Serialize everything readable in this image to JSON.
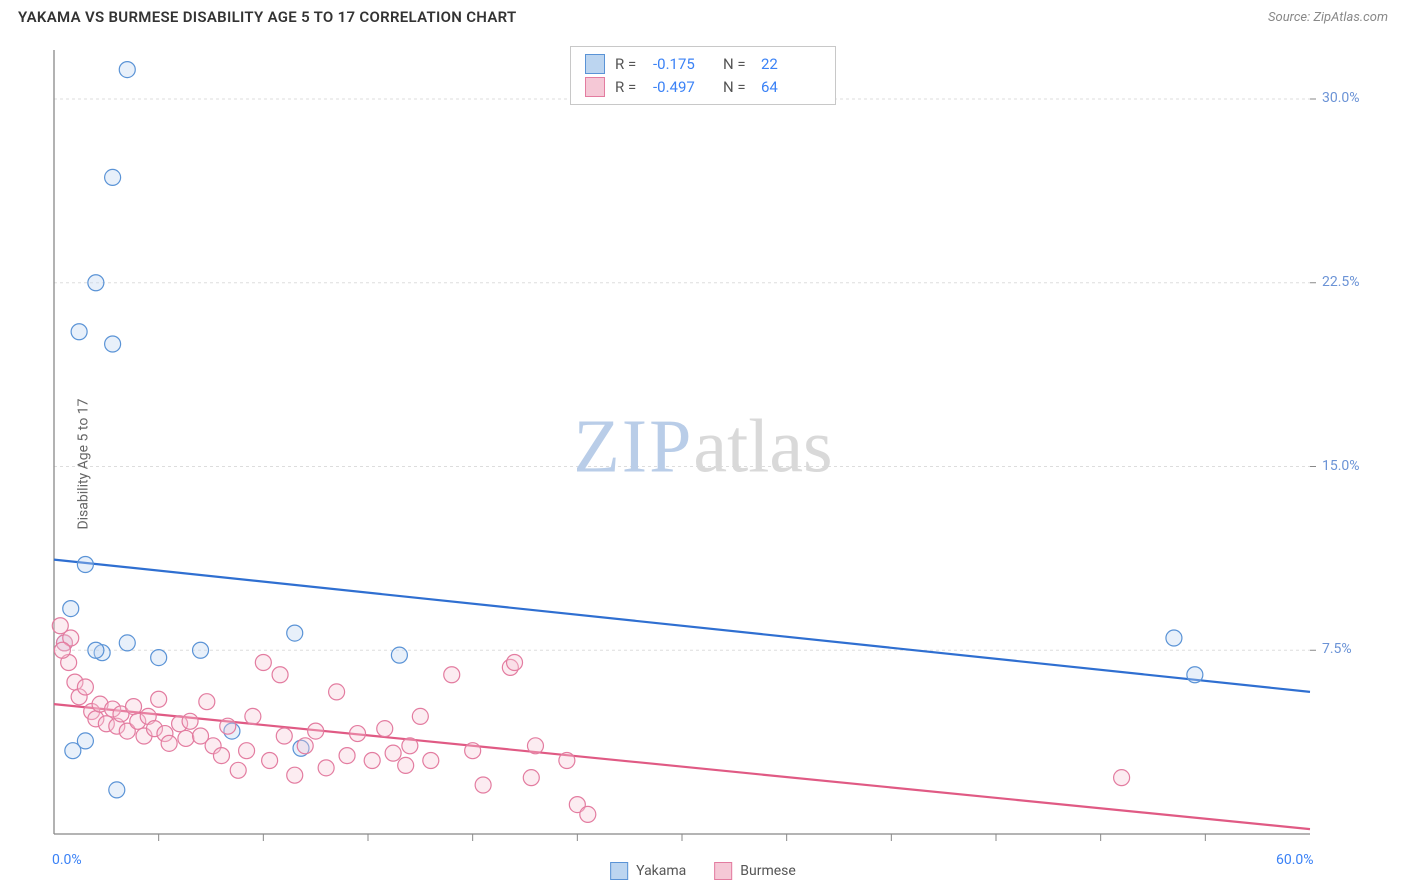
{
  "header": {
    "title": "YAKAMA VS BURMESE DISABILITY AGE 5 TO 17 CORRELATION CHART",
    "title_color": "#333333",
    "source_prefix": "Source: ",
    "source_name": "ZipAtlas.com",
    "source_color": "#888888"
  },
  "chart": {
    "type": "scatter",
    "ylabel": "Disability Age 5 to 17",
    "ylabel_color": "#666666",
    "background_color": "#ffffff",
    "plot_border_color": "#888888",
    "grid_color": "#dddddd",
    "grid_dash": "3,3",
    "xlim": [
      0,
      60
    ],
    "ylim": [
      0,
      32
    ],
    "x_start_label": "0.0%",
    "x_end_label": "60.0%",
    "x_label_color": "#3b82f6",
    "x_ticks": [
      5,
      10,
      15,
      20,
      25,
      30,
      35,
      40,
      45,
      50,
      55
    ],
    "y_ticks": [
      {
        "v": 7.5,
        "label": "7.5%"
      },
      {
        "v": 15.0,
        "label": "15.0%"
      },
      {
        "v": 22.5,
        "label": "22.5%"
      },
      {
        "v": 30.0,
        "label": "30.0%"
      }
    ],
    "y_tick_color": "#6b93d6",
    "marker_radius": 8,
    "marker_stroke_width": 1.2,
    "marker_fill_opacity": 0.35,
    "line_width": 2.2
  },
  "watermark": {
    "zip": "ZIP",
    "atlas": "atlas",
    "zip_color": "#b9cde8",
    "atlas_color": "#d9d9d9"
  },
  "legend_top": {
    "rows": [
      {
        "swatch_fill": "#bcd5f0",
        "swatch_stroke": "#5a93d6",
        "r_label": "R =",
        "r_value": "-0.175",
        "n_label": "N =",
        "n_value": "22",
        "value_color": "#3b82f6"
      },
      {
        "swatch_fill": "#f5c8d6",
        "swatch_stroke": "#e37ca0",
        "r_label": "R =",
        "r_value": "-0.497",
        "n_label": "N =",
        "n_value": "64",
        "value_color": "#3b82f6"
      }
    ],
    "label_color": "#555555"
  },
  "legend_bottom": {
    "items": [
      {
        "swatch_fill": "#bcd5f0",
        "swatch_stroke": "#5a93d6",
        "label": "Yakama"
      },
      {
        "swatch_fill": "#f5c8d6",
        "swatch_stroke": "#e37ca0",
        "label": "Burmese"
      }
    ]
  },
  "series": [
    {
      "name": "Yakama",
      "color_stroke": "#5a93d6",
      "color_fill": "#bcd5f0",
      "trend": {
        "x1": 0,
        "y1": 11.2,
        "x2": 60,
        "y2": 5.8,
        "color": "#2f6fd1"
      },
      "points": [
        [
          3.5,
          31.2
        ],
        [
          2.8,
          26.8
        ],
        [
          2.0,
          22.5
        ],
        [
          1.2,
          20.5
        ],
        [
          2.8,
          20.0
        ],
        [
          1.5,
          11.0
        ],
        [
          0.8,
          9.2
        ],
        [
          0.5,
          7.8
        ],
        [
          2.3,
          7.4
        ],
        [
          5.0,
          7.2
        ],
        [
          0.9,
          3.4
        ],
        [
          3.0,
          1.8
        ],
        [
          1.5,
          3.8
        ],
        [
          2.0,
          7.5
        ],
        [
          7.0,
          7.5
        ],
        [
          8.5,
          4.2
        ],
        [
          11.5,
          8.2
        ],
        [
          11.8,
          3.5
        ],
        [
          16.5,
          7.3
        ],
        [
          53.5,
          8.0
        ],
        [
          54.5,
          6.5
        ],
        [
          3.5,
          7.8
        ]
      ]
    },
    {
      "name": "Burmese",
      "color_stroke": "#e37ca0",
      "color_fill": "#f5c8d6",
      "trend": {
        "x1": 0,
        "y1": 5.3,
        "x2": 60,
        "y2": 0.2,
        "color": "#e05a84"
      },
      "points": [
        [
          0.3,
          8.5
        ],
        [
          0.5,
          7.8
        ],
        [
          0.7,
          7.0
        ],
        [
          0.8,
          8.0
        ],
        [
          1.0,
          6.2
        ],
        [
          1.2,
          5.6
        ],
        [
          1.5,
          6.0
        ],
        [
          1.8,
          5.0
        ],
        [
          2.0,
          4.7
        ],
        [
          2.2,
          5.3
        ],
        [
          2.5,
          4.5
        ],
        [
          2.8,
          5.1
        ],
        [
          3.0,
          4.4
        ],
        [
          3.2,
          4.9
        ],
        [
          3.5,
          4.2
        ],
        [
          3.8,
          5.2
        ],
        [
          4.0,
          4.6
        ],
        [
          4.3,
          4.0
        ],
        [
          4.5,
          4.8
        ],
        [
          4.8,
          4.3
        ],
        [
          5.0,
          5.5
        ],
        [
          5.3,
          4.1
        ],
        [
          5.5,
          3.7
        ],
        [
          6.0,
          4.5
        ],
        [
          6.3,
          3.9
        ],
        [
          6.5,
          4.6
        ],
        [
          7.0,
          4.0
        ],
        [
          7.3,
          5.4
        ],
        [
          7.6,
          3.6
        ],
        [
          8.0,
          3.2
        ],
        [
          8.3,
          4.4
        ],
        [
          8.8,
          2.6
        ],
        [
          9.2,
          3.4
        ],
        [
          9.5,
          4.8
        ],
        [
          10.0,
          7.0
        ],
        [
          10.3,
          3.0
        ],
        [
          10.8,
          6.5
        ],
        [
          11.0,
          4.0
        ],
        [
          11.5,
          2.4
        ],
        [
          12.0,
          3.6
        ],
        [
          12.5,
          4.2
        ],
        [
          13.0,
          2.7
        ],
        [
          13.5,
          5.8
        ],
        [
          14.0,
          3.2
        ],
        [
          14.5,
          4.1
        ],
        [
          15.2,
          3.0
        ],
        [
          15.8,
          4.3
        ],
        [
          16.2,
          3.3
        ],
        [
          16.8,
          2.8
        ],
        [
          17.0,
          3.6
        ],
        [
          17.5,
          4.8
        ],
        [
          18.0,
          3.0
        ],
        [
          20.0,
          3.4
        ],
        [
          20.5,
          2.0
        ],
        [
          21.8,
          6.8
        ],
        [
          22.0,
          7.0
        ],
        [
          22.8,
          2.3
        ],
        [
          23.0,
          3.6
        ],
        [
          24.5,
          3.0
        ],
        [
          25.0,
          1.2
        ],
        [
          25.5,
          0.8
        ],
        [
          19.0,
          6.5
        ],
        [
          51.0,
          2.3
        ],
        [
          0.4,
          7.5
        ]
      ]
    }
  ]
}
